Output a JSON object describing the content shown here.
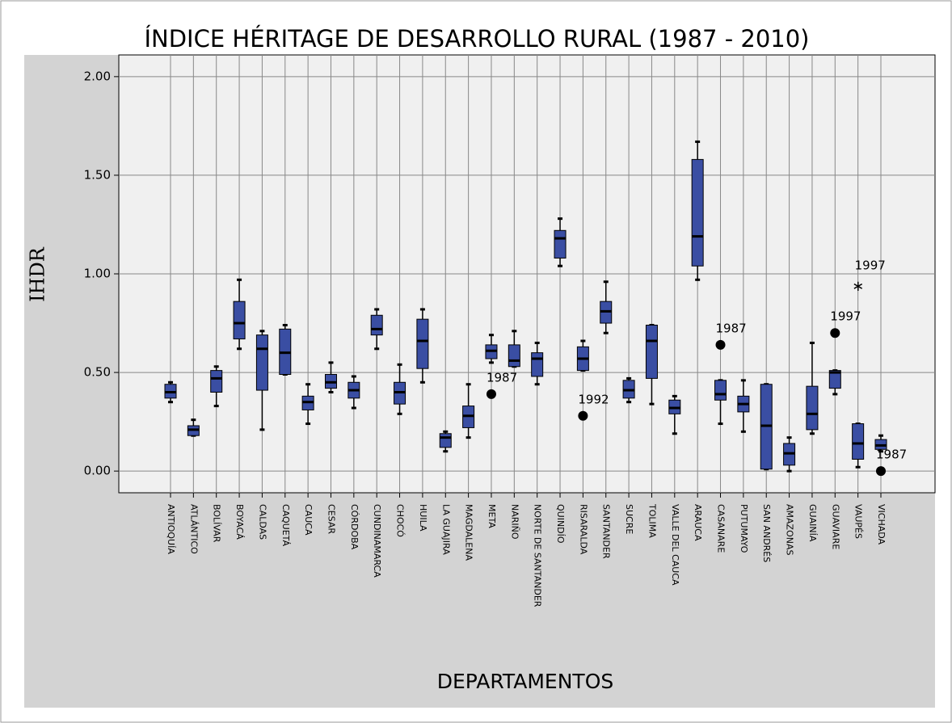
{
  "chart_data": {
    "type": "boxplot",
    "title": "ÍNDICE HÉRITAGE DE DESARROLLO RURAL (1987 - 2010)",
    "x_label": "DEPARTAMENTOS",
    "y_label": "IHDR",
    "color": "#3a4ea3",
    "grid": true,
    "ylim": [
      -0.11,
      2.11
    ],
    "yticks": [
      {
        "value": 0,
        "label": "0.00"
      },
      {
        "value": 0.5,
        "label": "0.50"
      },
      {
        "value": 1,
        "label": "1.00"
      },
      {
        "value": 1.5,
        "label": "1.50"
      },
      {
        "value": 2,
        "label": "2.00"
      }
    ],
    "categories": [
      "ANTIOQUÍA",
      "ATLÁNTICO",
      "BOLÍVAR",
      "BOYACÁ",
      "CALDAS",
      "CAQUETÁ",
      "CAUCA",
      "CESAR",
      "CÓRDOBA",
      "CUNDINAMARCA",
      "CHOCÓ",
      "HUILA",
      "LA GUAJIRA",
      "MAGDALENA",
      "META",
      "NARIÑO",
      "NORTE DE SANTANDER",
      "QUINDÍO",
      "RISARALDA",
      "SANTANDER",
      "SUCRE",
      "TOLIMA",
      "VALLE DEL CAUCA",
      "ARAUCA",
      "CASANARE",
      "PUTUMAYO",
      "SAN ANDRÉS",
      "AMAZONAS",
      "GUAINÍA",
      "GUAVIARE",
      "VAUPÉS",
      "VICHADA"
    ],
    "boxes": [
      {
        "min": 0.35,
        "q1": 0.37,
        "median": 0.4,
        "q3": 0.44,
        "max": 0.45
      },
      {
        "min": 0.18,
        "q1": 0.18,
        "median": 0.21,
        "q3": 0.23,
        "max": 0.26
      },
      {
        "min": 0.33,
        "q1": 0.4,
        "median": 0.47,
        "q3": 0.51,
        "max": 0.53
      },
      {
        "min": 0.62,
        "q1": 0.67,
        "median": 0.75,
        "q3": 0.86,
        "max": 0.97
      },
      {
        "min": 0.21,
        "q1": 0.41,
        "median": 0.62,
        "q3": 0.69,
        "max": 0.71
      },
      {
        "min": 0.49,
        "q1": 0.49,
        "median": 0.6,
        "q3": 0.72,
        "max": 0.74
      },
      {
        "min": 0.24,
        "q1": 0.31,
        "median": 0.35,
        "q3": 0.38,
        "max": 0.44
      },
      {
        "min": 0.4,
        "q1": 0.42,
        "median": 0.45,
        "q3": 0.49,
        "max": 0.55
      },
      {
        "min": 0.32,
        "q1": 0.37,
        "median": 0.41,
        "q3": 0.45,
        "max": 0.48
      },
      {
        "min": 0.62,
        "q1": 0.69,
        "median": 0.72,
        "q3": 0.79,
        "max": 0.82
      },
      {
        "min": 0.29,
        "q1": 0.34,
        "median": 0.4,
        "q3": 0.45,
        "max": 0.54
      },
      {
        "min": 0.45,
        "q1": 0.52,
        "median": 0.66,
        "q3": 0.77,
        "max": 0.82
      },
      {
        "min": 0.1,
        "q1": 0.12,
        "median": 0.17,
        "q3": 0.19,
        "max": 0.2
      },
      {
        "min": 0.17,
        "q1": 0.22,
        "median": 0.28,
        "q3": 0.33,
        "max": 0.44
      },
      {
        "min": 0.55,
        "q1": 0.57,
        "median": 0.61,
        "q3": 0.64,
        "max": 0.69,
        "outliers": [
          {
            "value": 0.39,
            "label": "1987",
            "marker": "circle"
          }
        ]
      },
      {
        "min": 0.53,
        "q1": 0.53,
        "median": 0.56,
        "q3": 0.64,
        "max": 0.71
      },
      {
        "min": 0.44,
        "q1": 0.48,
        "median": 0.57,
        "q3": 0.6,
        "max": 0.65
      },
      {
        "min": 1.04,
        "q1": 1.08,
        "median": 1.18,
        "q3": 1.22,
        "max": 1.28
      },
      {
        "min": 0.51,
        "q1": 0.51,
        "median": 0.57,
        "q3": 0.63,
        "max": 0.66,
        "outliers": [
          {
            "value": 0.28,
            "label": "1992",
            "marker": "circle"
          }
        ]
      },
      {
        "min": 0.7,
        "q1": 0.75,
        "median": 0.81,
        "q3": 0.86,
        "max": 0.96
      },
      {
        "min": 0.35,
        "q1": 0.37,
        "median": 0.41,
        "q3": 0.46,
        "max": 0.47
      },
      {
        "min": 0.34,
        "q1": 0.47,
        "median": 0.66,
        "q3": 0.74,
        "max": 0.74
      },
      {
        "min": 0.19,
        "q1": 0.29,
        "median": 0.32,
        "q3": 0.36,
        "max": 0.38
      },
      {
        "min": 0.97,
        "q1": 1.04,
        "median": 1.19,
        "q3": 1.58,
        "max": 1.67
      },
      {
        "min": 0.24,
        "q1": 0.36,
        "median": 0.39,
        "q3": 0.46,
        "max": 0.46,
        "outliers": [
          {
            "value": 0.64,
            "label": "1987",
            "marker": "circle"
          }
        ]
      },
      {
        "min": 0.2,
        "q1": 0.3,
        "median": 0.34,
        "q3": 0.38,
        "max": 0.46
      },
      {
        "min": 0.01,
        "q1": 0.01,
        "median": 0.23,
        "q3": 0.44,
        "max": 0.44
      },
      {
        "min": 0.0,
        "q1": 0.03,
        "median": 0.09,
        "q3": 0.14,
        "max": 0.17
      },
      {
        "min": 0.19,
        "q1": 0.21,
        "median": 0.29,
        "q3": 0.43,
        "max": 0.65
      },
      {
        "min": 0.39,
        "q1": 0.42,
        "median": 0.5,
        "q3": 0.51,
        "max": 0.51,
        "outliers": [
          {
            "value": 0.7,
            "label": "1997",
            "marker": "circle"
          }
        ]
      },
      {
        "min": 0.02,
        "q1": 0.06,
        "median": 0.14,
        "q3": 0.24,
        "max": 0.24,
        "outliers": [
          {
            "value": 0.95,
            "label": "1997",
            "marker": "star"
          }
        ]
      },
      {
        "min": 0.1,
        "q1": 0.11,
        "median": 0.13,
        "q3": 0.16,
        "max": 0.18,
        "outliers": [
          {
            "value": 0.0,
            "label": "1987",
            "marker": "circle"
          }
        ]
      }
    ]
  }
}
